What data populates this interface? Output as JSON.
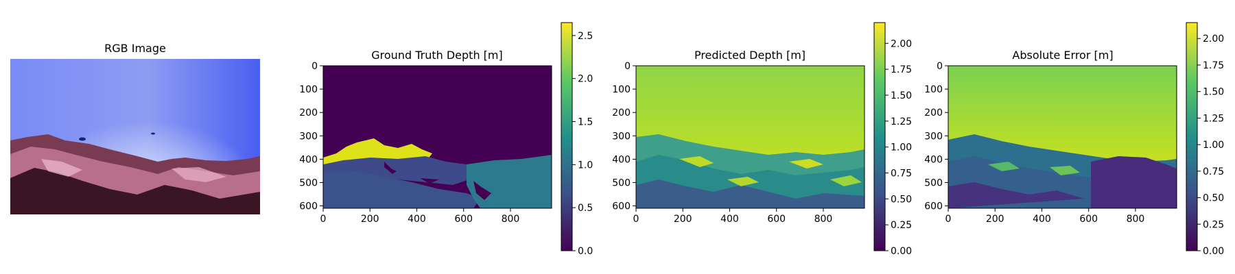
{
  "figure": {
    "panel_1": {
      "title": "RGB Image"
    },
    "panel_2": {
      "title": "Ground Truth Depth [m]"
    },
    "panel_3": {
      "title": "Predicted Depth [m]"
    },
    "panel_4": {
      "title": "Absolute Error [m]"
    }
  },
  "colors": {
    "viridis": [
      "#440154",
      "#3b528b",
      "#21918c",
      "#5ec962",
      "#fde725"
    ],
    "axis": "#000000",
    "water": [
      "#8f9cf5",
      "#6f82f8",
      "#4a5ff4"
    ],
    "reef": [
      "#3a1524",
      "#7a3a52",
      "#b86f8c",
      "#e8b2c8"
    ]
  },
  "chart_data": [
    {
      "type": "heatmap",
      "title": "Ground Truth Depth [m]",
      "xlim": [
        0,
        976
      ],
      "ylim": [
        610,
        0
      ],
      "xticks": [
        0,
        200,
        400,
        600,
        800
      ],
      "yticks": [
        0,
        100,
        200,
        300,
        400,
        500,
        600
      ],
      "colorbar": {
        "min": 0.0,
        "max": 2.65,
        "ticks": [
          "0.0",
          "0.5",
          "1.0",
          "1.5",
          "2.0",
          "2.5"
        ],
        "tick_values": [
          0,
          0.5,
          1.0,
          1.5,
          2.0,
          2.5
        ]
      }
    },
    {
      "type": "heatmap",
      "title": "Predicted Depth [m]",
      "xlim": [
        0,
        976
      ],
      "ylim": [
        610,
        0
      ],
      "xticks": [
        0,
        200,
        400,
        600,
        800
      ],
      "yticks": [
        0,
        100,
        200,
        300,
        400,
        500,
        600
      ],
      "colorbar": {
        "min": 0.0,
        "max": 2.2,
        "ticks": [
          "0.00",
          "0.25",
          "0.50",
          "0.75",
          "1.00",
          "1.25",
          "1.50",
          "1.75",
          "2.00"
        ],
        "tick_values": [
          0,
          0.25,
          0.5,
          0.75,
          1.0,
          1.25,
          1.5,
          1.75,
          2.0
        ]
      }
    },
    {
      "type": "heatmap",
      "title": "Absolute Error [m]",
      "xlim": [
        0,
        976
      ],
      "ylim": [
        610,
        0
      ],
      "xticks": [
        0,
        200,
        400,
        600,
        800
      ],
      "yticks": [
        0,
        100,
        200,
        300,
        400,
        500,
        600
      ],
      "colorbar": {
        "min": 0.0,
        "max": 2.15,
        "ticks": [
          "0.00",
          "0.25",
          "0.50",
          "0.75",
          "1.00",
          "1.25",
          "1.50",
          "1.75",
          "2.00"
        ],
        "tick_values": [
          0,
          0.25,
          0.5,
          0.75,
          1.0,
          1.25,
          1.5,
          1.75,
          2.0
        ]
      }
    }
  ]
}
